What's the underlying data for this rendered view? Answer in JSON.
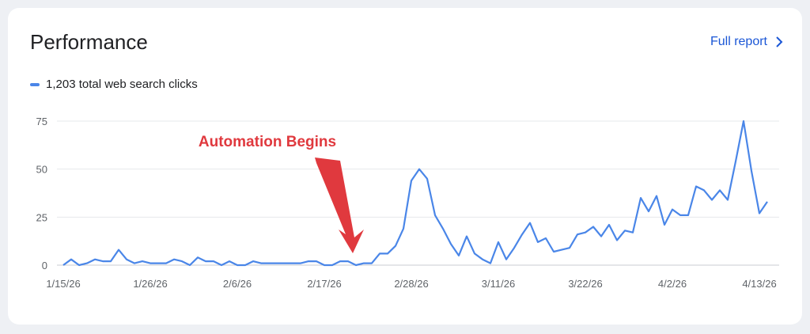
{
  "card": {
    "title": "Performance",
    "full_report_label": "Full report",
    "full_report_icon": "chevron-right-icon",
    "accent_color": "#1a56d6"
  },
  "legend": {
    "label": "1,203 total web search clicks",
    "color": "#4a86e8"
  },
  "annotation": {
    "text": "Automation Begins",
    "color": "#e0393e",
    "target_x": 37
  },
  "chart_data": {
    "type": "line",
    "y_ticks": [
      0,
      25,
      50,
      75
    ],
    "ylim": [
      0,
      75
    ],
    "x_tick_labels": [
      {
        "label": "1/15/26",
        "x": 0
      },
      {
        "label": "1/26/26",
        "x": 11
      },
      {
        "label": "2/6/26",
        "x": 22
      },
      {
        "label": "2/17/26",
        "x": 33
      },
      {
        "label": "2/28/26",
        "x": 44
      },
      {
        "label": "3/11/26",
        "x": 55
      },
      {
        "label": "3/22/26",
        "x": 66
      },
      {
        "label": "4/2/26",
        "x": 77
      },
      {
        "label": "4/13/26",
        "x": 88
      }
    ],
    "grid": true,
    "series": [
      {
        "color": "#4a86e8",
        "values": [
          0,
          3,
          0,
          1,
          3,
          2,
          2,
          8,
          3,
          1,
          2,
          1,
          1,
          1,
          3,
          2,
          0,
          4,
          2,
          2,
          0,
          2,
          0,
          0,
          2,
          1,
          1,
          1,
          1,
          1,
          1,
          2,
          2,
          0,
          0,
          2,
          2,
          0,
          1,
          1,
          6,
          6,
          10,
          19,
          44,
          50,
          45,
          26,
          19,
          11,
          5,
          15,
          6,
          3,
          1,
          12,
          3,
          9,
          16,
          22,
          12,
          14,
          7,
          8,
          9,
          16,
          17,
          20,
          15,
          21,
          13,
          18,
          17,
          35,
          28,
          36,
          21,
          29,
          26,
          26,
          41,
          39,
          34,
          39,
          34,
          54,
          75,
          49,
          27,
          33
        ]
      }
    ]
  }
}
